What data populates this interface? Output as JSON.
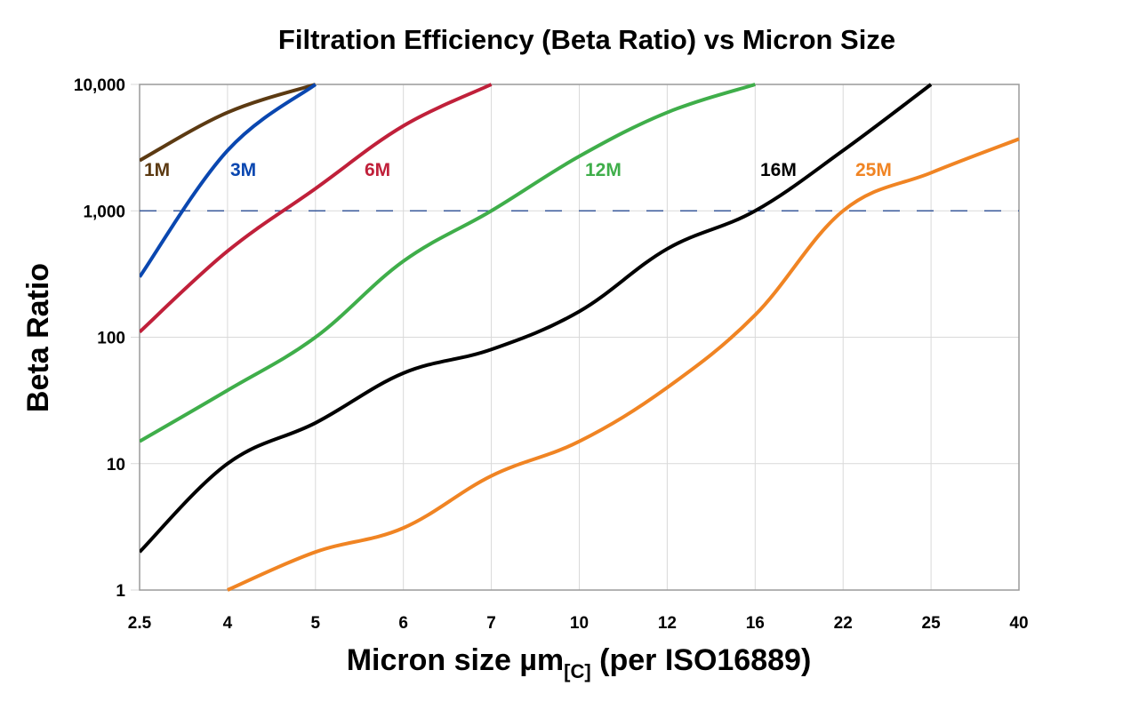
{
  "chart_data": {
    "type": "line",
    "title": "Filtration Efficiency (Beta Ratio) vs Micron Size",
    "xlabel": "Micron size µm",
    "xlabel_subscript": "[C]",
    "xlabel_suffix": " (per ISO16889)",
    "ylabel": "Beta Ratio",
    "y_scale": "log",
    "ylim": [
      1,
      10000
    ],
    "y_ticks": [
      1,
      10,
      100,
      1000,
      10000
    ],
    "y_tick_labels": [
      "1",
      "10",
      "100",
      "1,000",
      "10,000"
    ],
    "categories": [
      "2.5",
      "4",
      "5",
      "6",
      "7",
      "10",
      "12",
      "16",
      "22",
      "25",
      "40"
    ],
    "grid": true,
    "reference_line": {
      "y": 1000,
      "style": "dashed",
      "color": "#3a5a9a"
    },
    "series": [
      {
        "name": "1M",
        "color": "#5c3a12",
        "values": [
          2500,
          6000,
          10000,
          null,
          null,
          null,
          null,
          null,
          null,
          null,
          null
        ]
      },
      {
        "name": "3M",
        "color": "#0a47b0",
        "values": [
          300,
          3000,
          10000,
          null,
          null,
          null,
          null,
          null,
          null,
          null,
          null
        ]
      },
      {
        "name": "6M",
        "color": "#c0203a",
        "values": [
          110,
          480,
          1500,
          4700,
          10000,
          null,
          null,
          null,
          null,
          null,
          null
        ]
      },
      {
        "name": "12M",
        "color": "#3fae4a",
        "values": [
          15,
          38,
          100,
          400,
          1000,
          2700,
          6000,
          10000,
          null,
          null,
          null
        ]
      },
      {
        "name": "16M",
        "color": "#000000",
        "values": [
          2,
          10,
          21,
          52,
          80,
          160,
          500,
          1000,
          3000,
          10000,
          null
        ]
      },
      {
        "name": "25M",
        "color": "#f08423",
        "values": [
          null,
          1,
          2,
          3.1,
          8,
          15,
          40,
          150,
          1000,
          2000,
          3700
        ]
      }
    ]
  }
}
